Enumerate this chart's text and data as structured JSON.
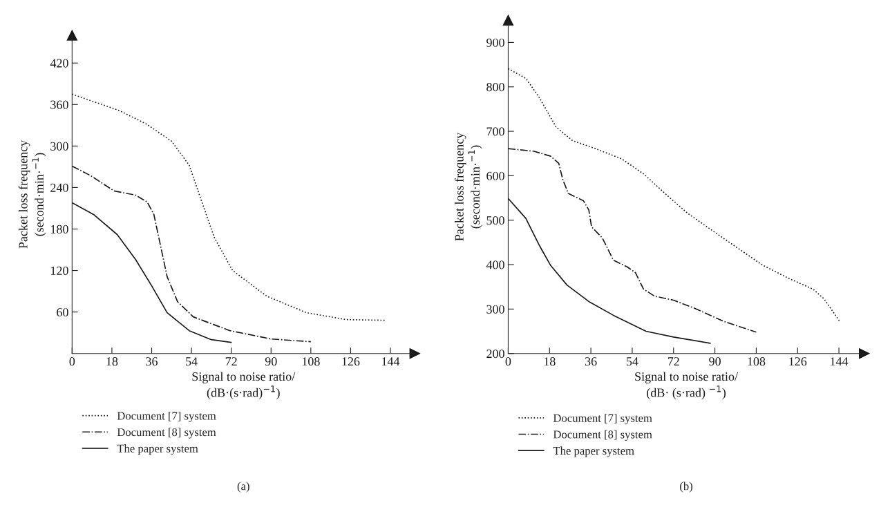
{
  "chart_data": [
    {
      "type": "line",
      "xlabel": "Signal to noise ratio/\n(dB·(s·rad)$^{−1}$)",
      "ylabel": "Packet loss frequency\n(second·min·$^{−1}$)",
      "xlim": [
        0,
        155
      ],
      "ylim": [
        0,
        460
      ],
      "xticks": [
        0,
        18,
        36,
        54,
        72,
        90,
        108,
        126,
        144
      ],
      "yticks": [
        60,
        120,
        180,
        240,
        300,
        360,
        420
      ],
      "grid": false,
      "legend": "bottom",
      "marker": "none",
      "annotations": [
        "(a)"
      ],
      "series": [
        {
          "name": "Document [7] system",
          "color": "#1a1a1a",
          "line_style": "dotted",
          "x": [
            0,
            21.6,
            34,
            45,
            53,
            58.5,
            64.3,
            72.6,
            88,
            106,
            124,
            142
          ],
          "values": [
            375,
            351,
            331,
            307,
            272,
            221,
            168,
            120,
            83,
            59,
            49,
            48
          ]
        },
        {
          "name": "Document [8] system",
          "color": "#1a1a1a",
          "line_style": "dashdot",
          "x": [
            0,
            8.5,
            19,
            28.7,
            34,
            37,
            40,
            43,
            47.7,
            54.8,
            71.4,
            90,
            108
          ],
          "values": [
            271,
            257,
            235,
            229,
            219,
            201,
            156,
            111,
            75,
            53,
            33,
            21,
            17
          ]
        },
        {
          "name": "The paper system",
          "color": "#1a1a1a",
          "line_style": "solid",
          "x": [
            0,
            9.7,
            20.4,
            28.7,
            35.8,
            43,
            53,
            63,
            72
          ],
          "values": [
            218,
            201,
            172,
            136,
            99,
            59,
            33,
            20,
            16
          ]
        }
      ]
    },
    {
      "type": "line",
      "xlabel": "Signal to noise ratio/\n(dB· (s·rad) $^{−1}$)",
      "ylabel": "Packet loss frequency\n(second·min·$^{−1}$)",
      "xlim": [
        0,
        155
      ],
      "ylim": [
        200,
        950
      ],
      "xticks": [
        0,
        18,
        36,
        54,
        72,
        90,
        108,
        126,
        144
      ],
      "yticks": [
        200,
        300,
        400,
        500,
        600,
        700,
        800,
        900
      ],
      "grid": false,
      "legend": "bottom",
      "marker": "none",
      "annotations": [
        "(b)"
      ],
      "series": [
        {
          "name": "Document [7] system",
          "color": "#1a1a1a",
          "line_style": "dotted",
          "x": [
            0,
            7.7,
            13.3,
            20.8,
            28,
            37.5,
            49.4,
            59,
            69.6,
            78,
            93.5,
            111,
            123,
            132.7,
            137.5,
            144.4
          ],
          "values": [
            841,
            819,
            778,
            710,
            679,
            662,
            638,
            604,
            554,
            516,
            460,
            398,
            367,
            345,
            323,
            272
          ]
        },
        {
          "name": "Document [8] system",
          "color": "#1a1a1a",
          "line_style": "dashdot",
          "x": [
            0,
            11.3,
            18.5,
            22,
            23.8,
            26.2,
            32.7,
            35.1,
            36.3,
            41,
            45.8,
            51.8,
            55.4,
            58.9,
            63.7,
            72,
            81.5,
            93.5,
            108
          ],
          "values": [
            661,
            655,
            644,
            628,
            591,
            560,
            544,
            523,
            485,
            460,
            410,
            395,
            382,
            345,
            329,
            320,
            301,
            273,
            248
          ]
        },
        {
          "name": "The paper system",
          "color": "#1a1a1a",
          "line_style": "solid",
          "x": [
            0,
            7.7,
            13.7,
            18.5,
            25.6,
            35.1,
            45.8,
            60,
            72,
            88
          ],
          "values": [
            549,
            504,
            442,
            398,
            354,
            317,
            286,
            250,
            237,
            223
          ]
        }
      ]
    }
  ]
}
